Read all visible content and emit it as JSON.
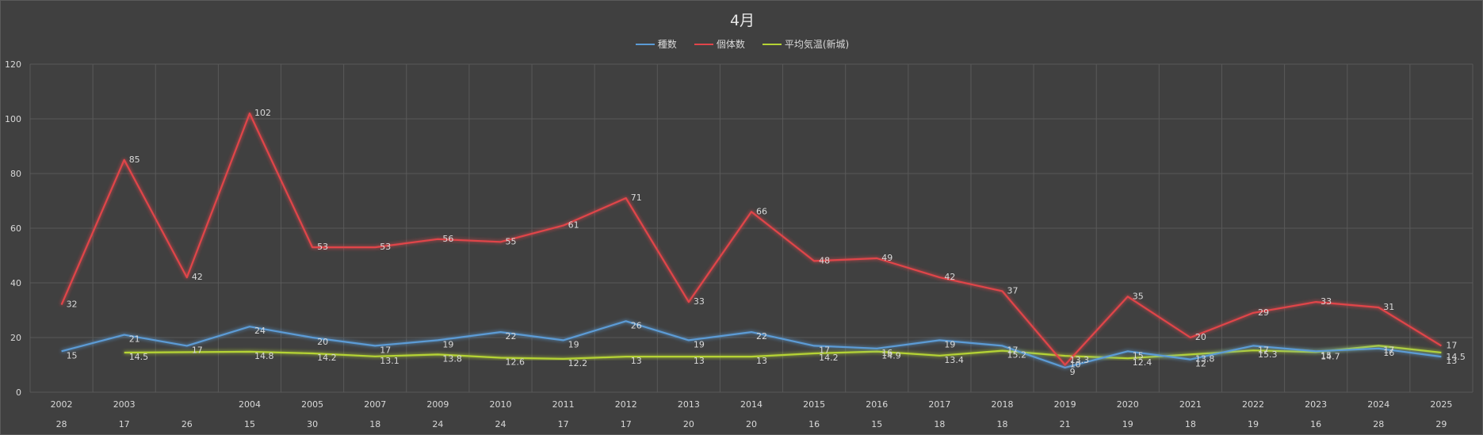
{
  "chart_data": {
    "type": "line",
    "title": "4月",
    "categories": [
      "2002",
      "2003",
      "",
      "2004",
      "2005",
      "2007",
      "2009",
      "2010",
      "2011",
      "2012",
      "2013",
      "2014",
      "2015",
      "2016",
      "2017",
      "2018",
      "2019",
      "2020",
      "2021",
      "2022",
      "2023",
      "2024",
      "2025"
    ],
    "secondary_labels": [
      "28",
      "17",
      "26",
      "15",
      "30",
      "18",
      "24",
      "24",
      "17",
      "17",
      "20",
      "20",
      "16",
      "15",
      "18",
      "18",
      "21",
      "19",
      "18",
      "19",
      "16",
      "28",
      "29"
    ],
    "series": [
      {
        "name": "種数",
        "color": "#5b9bd5",
        "values": [
          15,
          21,
          17,
          24,
          20,
          17,
          19,
          22,
          19,
          26,
          19,
          22,
          17,
          16,
          19,
          17,
          9,
          15,
          12,
          17,
          15,
          16,
          13
        ]
      },
      {
        "name": "個体数",
        "color": "#e0454a",
        "values": [
          32,
          85,
          42,
          102,
          53,
          53,
          56,
          55,
          61,
          71,
          33,
          66,
          48,
          49,
          42,
          37,
          10,
          35,
          20,
          29,
          33,
          31,
          17
        ]
      },
      {
        "name": "平均気温(新城)",
        "color": "#b5d334",
        "values": [
          null,
          14.5,
          null,
          14.8,
          14.2,
          13.1,
          13.8,
          12.6,
          12.2,
          13,
          13,
          13,
          14.2,
          14.9,
          13.4,
          15.2,
          13.3,
          12.4,
          13.8,
          15.3,
          14.7,
          17,
          14.5
        ]
      }
    ],
    "ylim": [
      0,
      120
    ],
    "yticks": [
      0,
      20,
      40,
      60,
      80,
      100,
      120
    ],
    "grid": true,
    "legend_position": "top"
  }
}
